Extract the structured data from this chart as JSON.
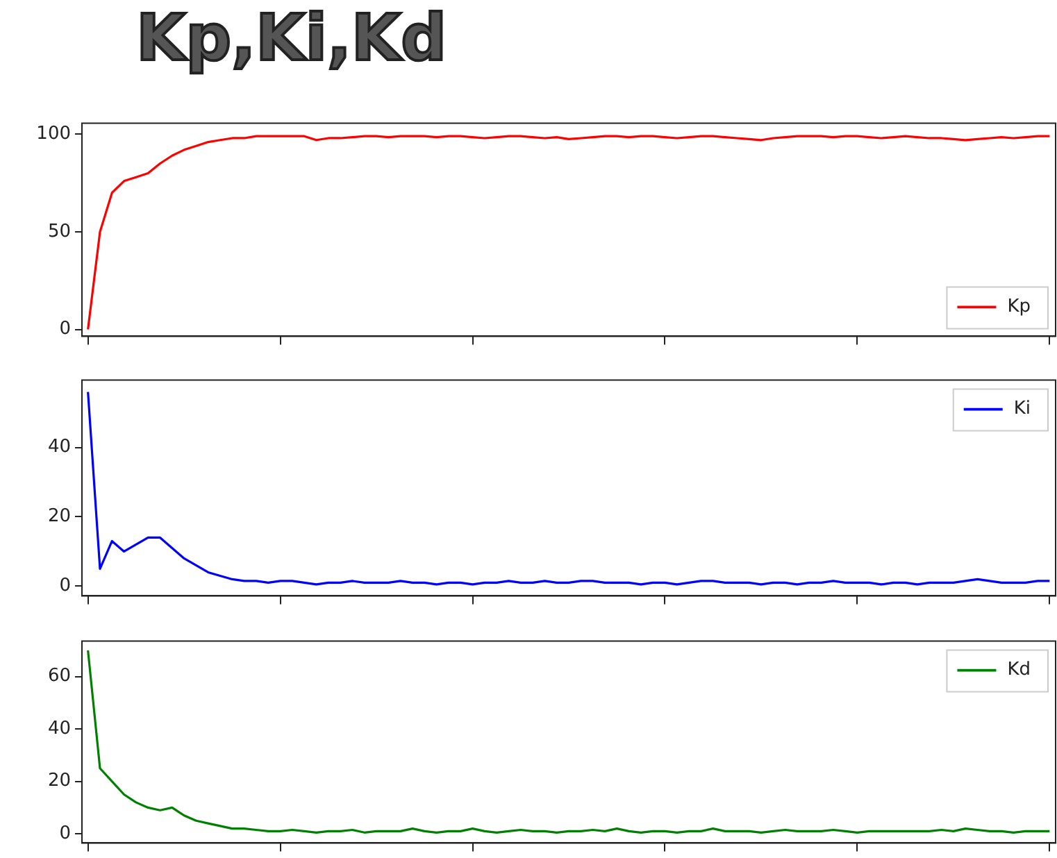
{
  "chart_data": [
    {
      "type": "line",
      "title": "Kp,Ki,Kd",
      "categories": [
        null,
        null,
        null,
        null,
        null,
        null,
        null,
        null,
        null,
        null,
        null,
        null,
        null,
        null,
        null,
        null,
        null,
        null,
        null,
        null,
        null,
        null,
        null,
        null,
        null,
        null,
        null,
        null,
        null,
        null,
        null,
        null,
        null,
        null,
        null,
        null,
        null,
        null,
        null,
        null,
        null,
        null,
        null,
        null,
        null,
        null,
        null,
        null,
        null,
        null,
        null,
        null,
        null,
        null,
        null,
        null,
        null,
        null,
        null,
        null,
        null,
        null,
        null,
        null,
        null,
        null,
        null,
        null,
        null,
        null,
        null,
        null,
        null,
        null,
        null,
        null,
        null,
        null,
        null,
        null,
        null
      ],
      "series": [
        {
          "name": "Kp",
          "color": "#ff0000",
          "values": [
            0,
            50,
            70,
            76,
            78,
            80,
            85,
            89,
            92,
            94,
            96,
            97,
            98,
            98,
            99,
            99,
            99,
            99,
            99,
            97,
            98,
            98,
            98.5,
            99,
            99,
            98.5,
            99,
            99,
            99,
            98.5,
            99,
            99,
            98.5,
            98,
            98.5,
            99,
            99,
            98.5,
            98,
            98.5,
            97.5,
            98,
            98.5,
            99,
            99,
            98.5,
            99,
            99,
            98.5,
            98,
            98.5,
            99,
            99,
            98.5,
            98,
            97.5,
            97,
            98,
            98.5,
            99,
            99,
            99,
            98.5,
            99,
            99,
            98.5,
            98,
            98.5,
            99,
            98.5,
            98,
            98,
            97.5,
            97,
            97.5,
            98,
            98.5,
            98,
            98.5,
            99,
            99
          ]
        }
      ],
      "ylim": [
        -3.5,
        105.6
      ],
      "yticks": [
        0,
        50,
        100
      ],
      "grid": false,
      "legend": "bottom right",
      "tick_labels": "y",
      "marker": "none",
      "line_style": "solid"
    },
    {
      "type": "line",
      "categories": [
        null,
        null,
        null,
        null,
        null,
        null,
        null,
        null,
        null,
        null,
        null,
        null,
        null,
        null,
        null,
        null,
        null,
        null,
        null,
        null,
        null,
        null,
        null,
        null,
        null,
        null,
        null,
        null,
        null,
        null,
        null,
        null,
        null,
        null,
        null,
        null,
        null,
        null,
        null,
        null,
        null,
        null,
        null,
        null,
        null,
        null,
        null,
        null,
        null,
        null,
        null,
        null,
        null,
        null,
        null,
        null,
        null,
        null,
        null,
        null,
        null,
        null,
        null,
        null,
        null,
        null,
        null,
        null,
        null,
        null,
        null,
        null,
        null,
        null,
        null,
        null,
        null,
        null,
        null,
        null,
        null
      ],
      "series": [
        {
          "name": "Ki",
          "color": "#0000ff",
          "values": [
            56,
            5,
            13,
            10,
            12,
            14,
            14,
            11,
            8,
            6,
            4,
            3,
            2,
            1.5,
            1.5,
            1,
            1.5,
            1.5,
            1,
            0.5,
            1,
            1,
            1.5,
            1,
            1,
            1,
            1.5,
            1,
            1,
            0.5,
            1,
            1,
            0.5,
            1,
            1,
            1.5,
            1,
            1,
            1.5,
            1,
            1,
            1.5,
            1.5,
            1,
            1,
            1,
            0.5,
            1,
            1,
            0.5,
            1,
            1.5,
            1.5,
            1,
            1,
            1,
            0.5,
            1,
            1,
            0.5,
            1,
            1,
            1.5,
            1,
            1,
            1,
            0.5,
            1,
            1,
            0.5,
            1,
            1,
            1,
            1.5,
            2,
            1.5,
            1,
            1,
            1,
            1.5,
            1.5
          ]
        }
      ],
      "ylim": [
        -2.8,
        59.4
      ],
      "yticks": [
        0,
        20,
        40
      ],
      "grid": false,
      "legend": "top right",
      "tick_labels": "y",
      "marker": "none",
      "line_style": "solid"
    },
    {
      "type": "line",
      "categories": [
        null,
        null,
        null,
        null,
        null,
        null,
        null,
        null,
        null,
        null,
        null,
        null,
        null,
        null,
        null,
        null,
        null,
        null,
        null,
        null,
        null,
        null,
        null,
        null,
        null,
        null,
        null,
        null,
        null,
        null,
        null,
        null,
        null,
        null,
        null,
        null,
        null,
        null,
        null,
        null,
        null,
        null,
        null,
        null,
        null,
        null,
        null,
        null,
        null,
        null,
        null,
        null,
        null,
        null,
        null,
        null,
        null,
        null,
        null,
        null,
        null,
        null,
        null,
        null,
        null,
        null,
        null,
        null,
        null,
        null,
        null,
        null,
        null,
        null,
        null,
        null,
        null,
        null,
        null,
        null,
        null
      ],
      "series": [
        {
          "name": "Kd",
          "color": "#008000",
          "values": [
            70,
            25,
            20,
            15,
            12,
            10,
            9,
            10,
            7,
            5,
            4,
            3,
            2,
            2,
            1.5,
            1,
            1,
            1.5,
            1,
            0.5,
            1,
            1,
            1.5,
            0.5,
            1,
            1,
            1,
            2,
            1,
            0.5,
            1,
            1,
            2,
            1,
            0.5,
            1,
            1.5,
            1,
            1,
            0.5,
            1,
            1,
            1.5,
            1,
            2,
            1,
            0.5,
            1,
            1,
            0.5,
            1,
            1,
            2,
            1,
            1,
            1,
            0.5,
            1,
            1.5,
            1,
            1,
            1,
            1.5,
            1,
            0.5,
            1,
            1,
            1,
            1,
            1,
            1,
            1.5,
            1,
            2,
            1.5,
            1,
            1,
            0.5,
            1,
            1,
            1
          ]
        }
      ],
      "ylim": [
        -3.5,
        73.5
      ],
      "yticks": [
        0,
        20,
        40,
        60
      ],
      "grid": false,
      "legend": "top right",
      "tick_labels": "y",
      "marker": "none",
      "line_style": "solid"
    }
  ]
}
